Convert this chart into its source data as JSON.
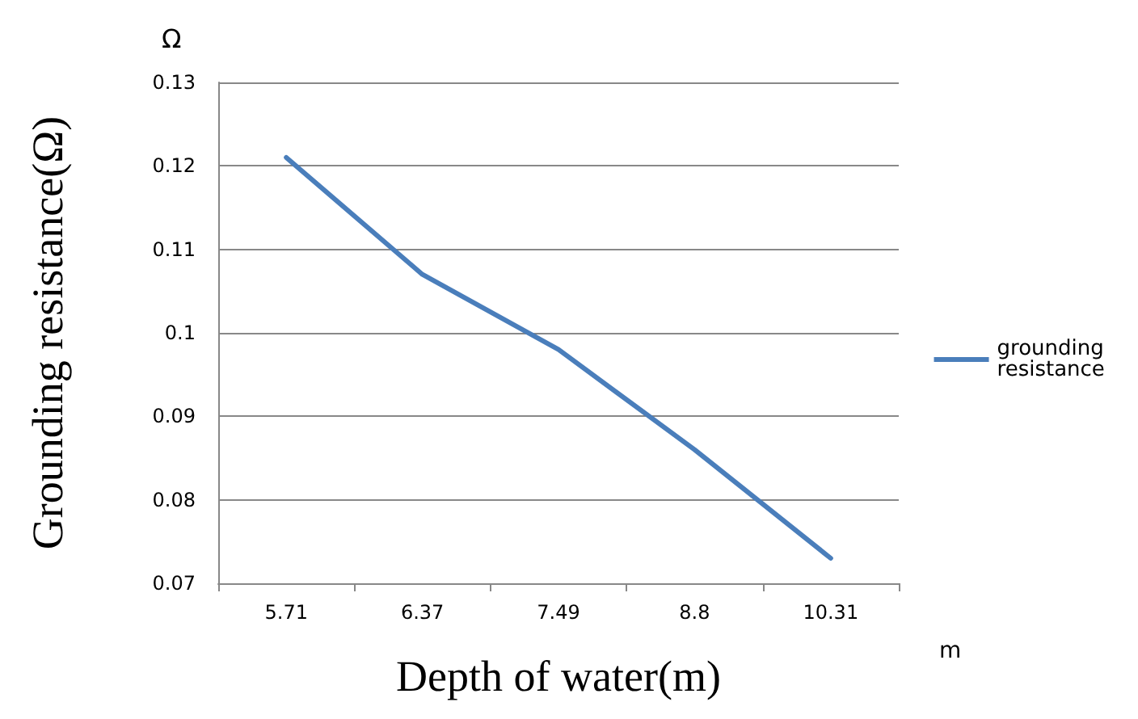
{
  "chart_data": {
    "type": "line",
    "xlabel": "Depth of water(m)",
    "ylabel": "Grounding resistance(Ω)",
    "categories": [
      "5.71",
      "6.37",
      "7.49",
      "8.8",
      "10.31"
    ],
    "series": [
      {
        "name": "grounding resistance",
        "color": "#4a7ebb",
        "values": [
          0.121,
          0.107,
          0.098,
          0.086,
          0.073
        ]
      }
    ],
    "ylim": [
      0.07,
      0.13
    ],
    "yticks": [
      0.07,
      0.08,
      0.09,
      0.1,
      0.11,
      0.12,
      0.13
    ],
    "grid": "y",
    "legend": "right",
    "marker": "none",
    "line_style": "solid",
    "annotations": [
      "Ω",
      "m"
    ]
  }
}
